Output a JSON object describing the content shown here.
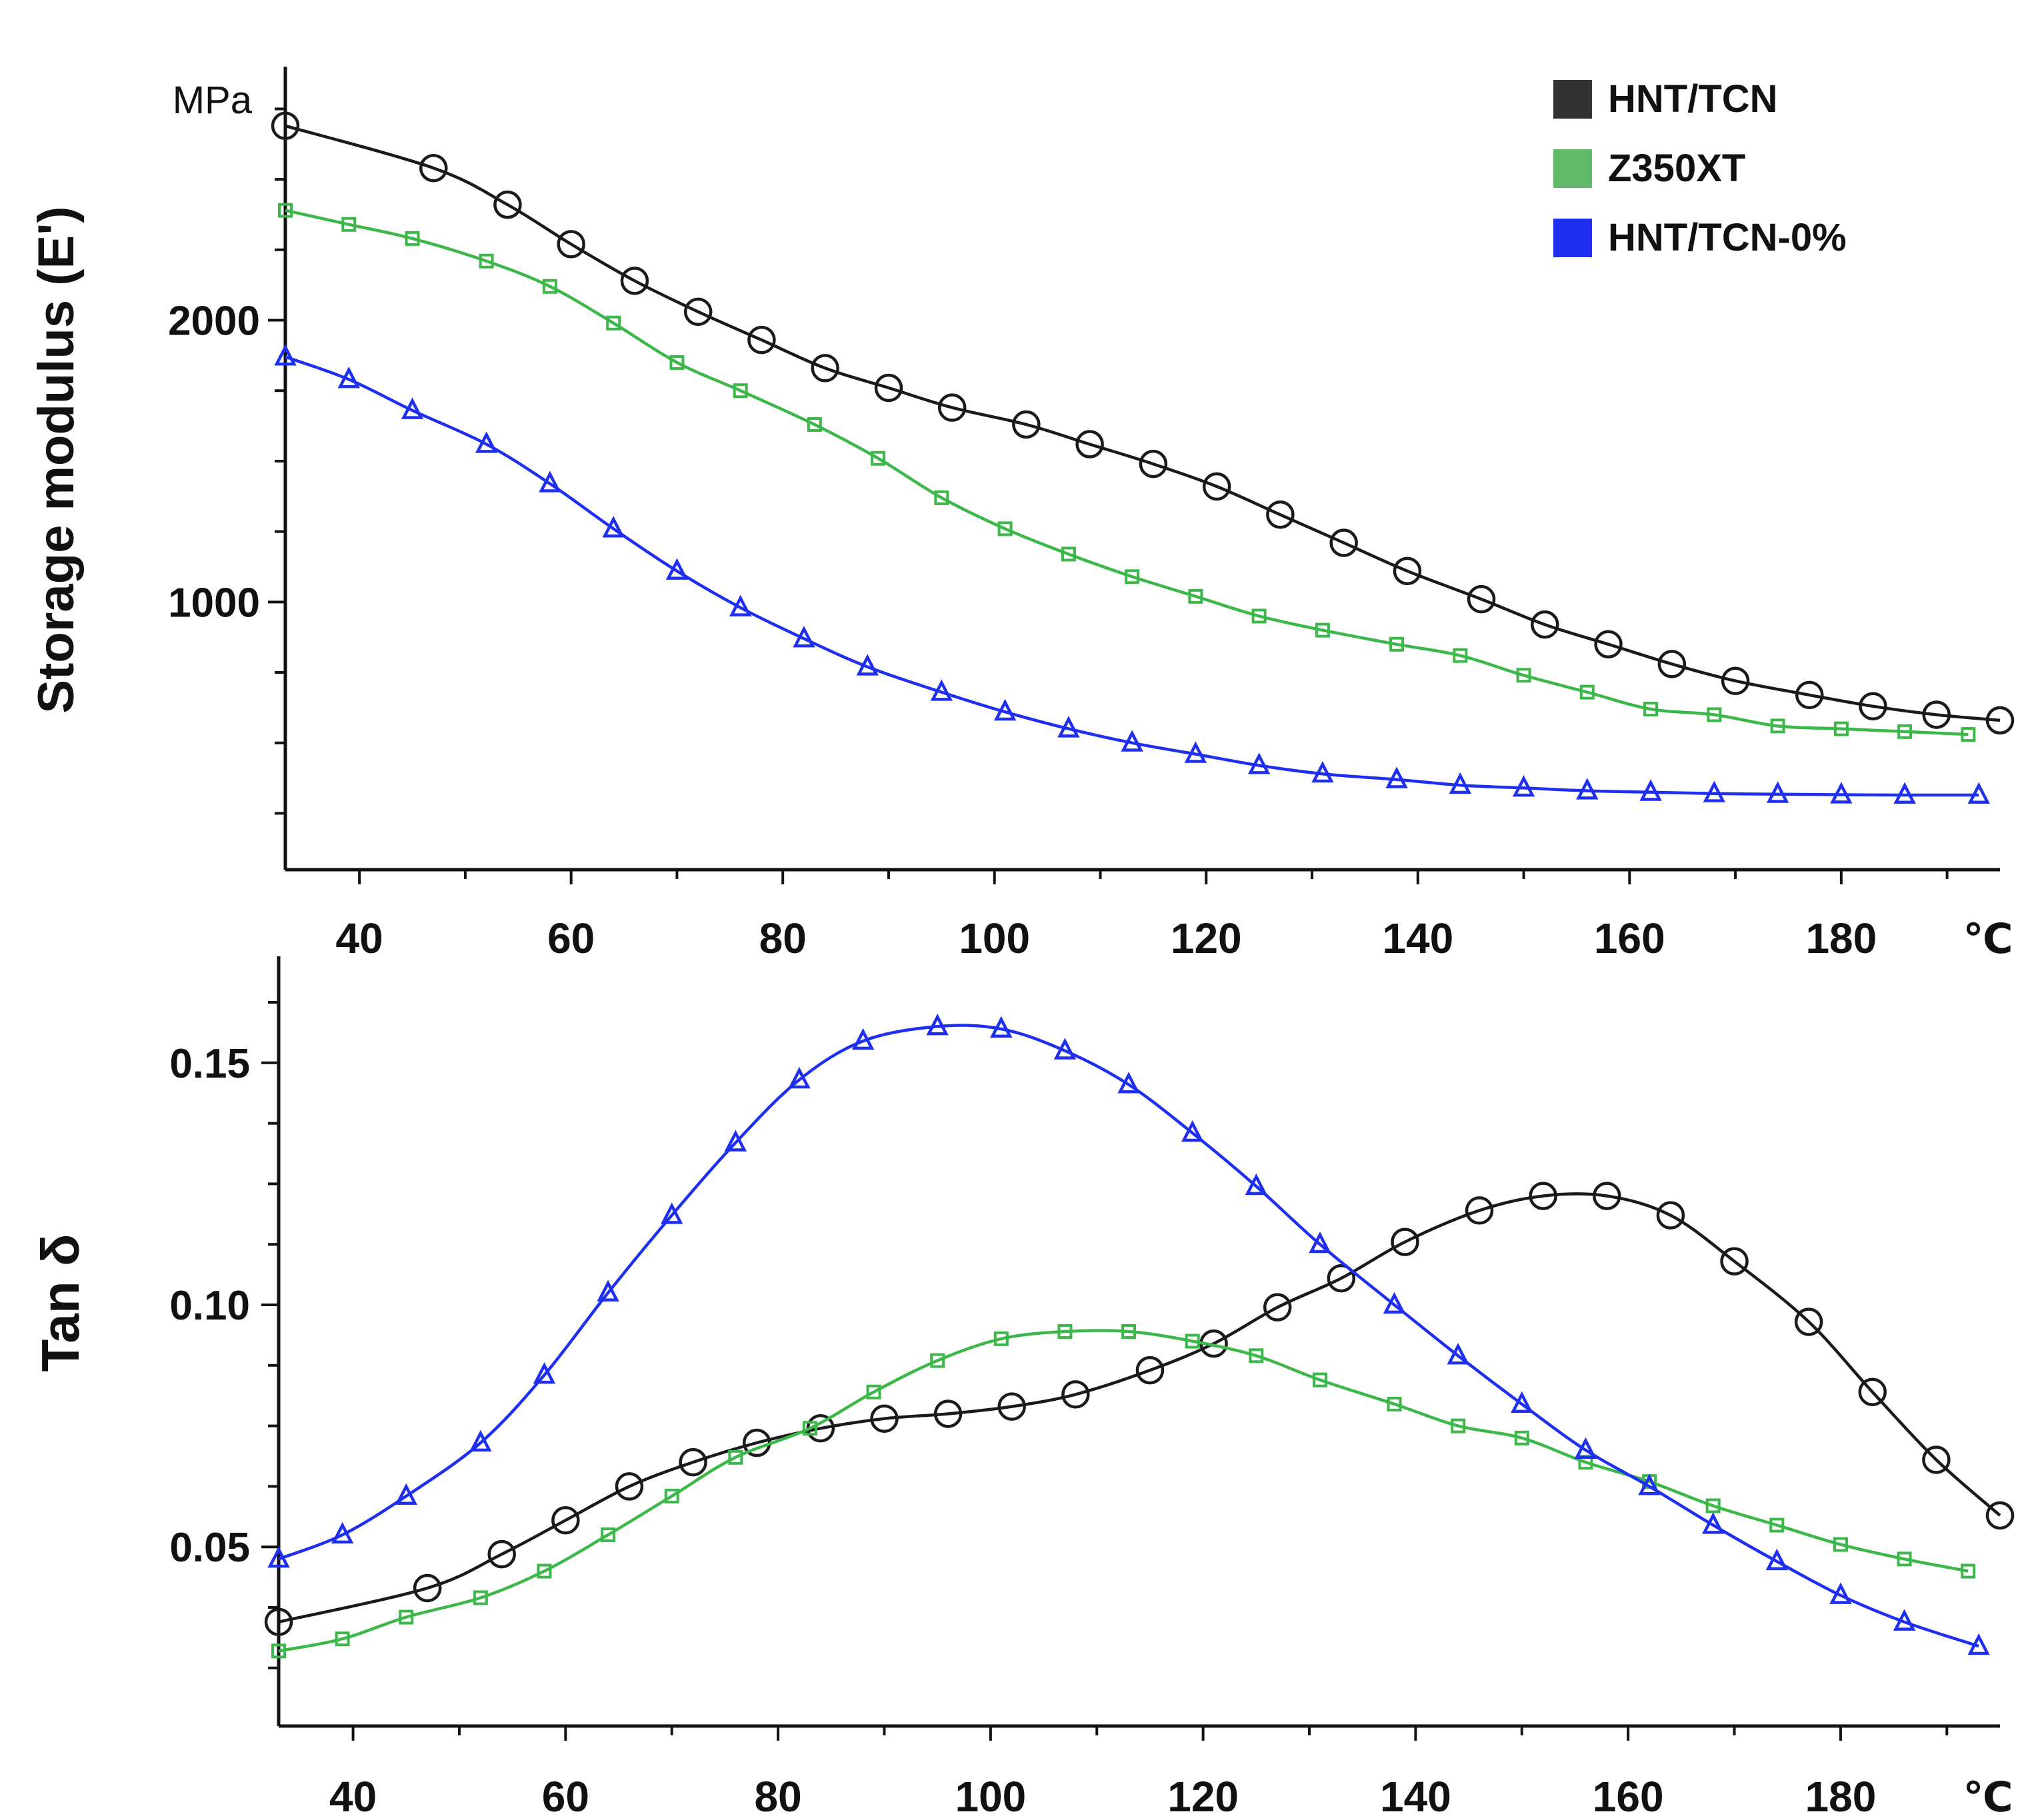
{
  "legend": {
    "entries": [
      {
        "label": "HNT/TCN",
        "color": "#333333"
      },
      {
        "label": "Z350XT",
        "color": "#5fba6a"
      },
      {
        "label": "HNT/TCN-0%",
        "color": "#1f2ff0"
      }
    ]
  },
  "chart_data": [
    {
      "type": "line",
      "title": "",
      "xlabel": "°C",
      "ylabel": "Storage modulus (E')",
      "y_unit_label": "MPa",
      "xlim": [
        33,
        195
      ],
      "ylim": [
        50,
        2900
      ],
      "x_ticks": [
        40,
        60,
        80,
        100,
        120,
        140,
        160,
        180
      ],
      "x_unit_tick": "℃",
      "y_ticks": [
        1000,
        2000
      ],
      "legend_position": "top-right",
      "series": [
        {
          "name": "HNT/TCN",
          "color": "#1a1a1a",
          "marker": "circle",
          "x": [
            33,
            47,
            54,
            60,
            66,
            72,
            78,
            84,
            90,
            96,
            103,
            109,
            115,
            121,
            127,
            133,
            139,
            146,
            152,
            158,
            164,
            170,
            177,
            183,
            189,
            195
          ],
          "y": [
            2690,
            2540,
            2410,
            2270,
            2140,
            2030,
            1930,
            1830,
            1760,
            1690,
            1630,
            1560,
            1490,
            1410,
            1310,
            1210,
            1110,
            1010,
            920,
            850,
            780,
            720,
            670,
            630,
            600,
            580
          ]
        },
        {
          "name": "Z350XT",
          "color": "#3cb84a",
          "marker": "square",
          "x": [
            33,
            39,
            45,
            52,
            58,
            64,
            70,
            76,
            83,
            89,
            95,
            101,
            107,
            113,
            119,
            125,
            131,
            138,
            144,
            150,
            156,
            162,
            168,
            174,
            180,
            186,
            192
          ],
          "y": [
            2390,
            2340,
            2290,
            2210,
            2120,
            1990,
            1850,
            1750,
            1630,
            1510,
            1370,
            1260,
            1170,
            1090,
            1020,
            950,
            900,
            850,
            810,
            740,
            680,
            620,
            600,
            560,
            550,
            540,
            530
          ]
        },
        {
          "name": "HNT/TCN-0%",
          "color": "#1f2ff0",
          "marker": "triangle",
          "x": [
            33,
            39,
            45,
            52,
            58,
            64,
            70,
            76,
            82,
            88,
            95,
            101,
            107,
            113,
            119,
            125,
            131,
            138,
            144,
            150,
            156,
            162,
            168,
            174,
            180,
            186,
            193
          ],
          "y": [
            1870,
            1790,
            1680,
            1560,
            1420,
            1260,
            1110,
            980,
            870,
            770,
            680,
            610,
            550,
            500,
            460,
            420,
            390,
            370,
            350,
            340,
            330,
            325,
            320,
            318,
            316,
            315,
            315
          ]
        }
      ]
    },
    {
      "type": "line",
      "title": "",
      "xlabel": "°C",
      "ylabel": "Tan δ",
      "xlim": [
        33,
        195
      ],
      "ylim": [
        0.013,
        0.172
      ],
      "x_ticks": [
        40,
        60,
        80,
        100,
        120,
        140,
        160,
        180
      ],
      "x_unit_tick": "℃",
      "y_ticks": [
        0.05,
        0.1,
        0.15
      ],
      "y_tick_labels": [
        "0.05",
        "0.10",
        "0.15"
      ],
      "series": [
        {
          "name": "HNT/TCN",
          "color": "#1a1a1a",
          "marker": "circle",
          "x": [
            33,
            47,
            54,
            60,
            66,
            72,
            78,
            84,
            90,
            96,
            102,
            108,
            115,
            121,
            127,
            133,
            139,
            146,
            152,
            158,
            164,
            170,
            177,
            183,
            189,
            195
          ],
          "y": [
            0.0345,
            0.0415,
            0.0485,
            0.0555,
            0.0625,
            0.0675,
            0.0715,
            0.0745,
            0.0765,
            0.0775,
            0.079,
            0.0815,
            0.0865,
            0.092,
            0.0995,
            0.1055,
            0.113,
            0.1195,
            0.1225,
            0.1225,
            0.1185,
            0.109,
            0.0965,
            0.082,
            0.068,
            0.0565
          ]
        },
        {
          "name": "Z350XT",
          "color": "#3cb84a",
          "marker": "square",
          "x": [
            33,
            39,
            45,
            52,
            58,
            64,
            70,
            76,
            83,
            89,
            95,
            101,
            107,
            113,
            119,
            125,
            131,
            138,
            144,
            150,
            156,
            162,
            168,
            174,
            180,
            186,
            192
          ],
          "y": [
            0.0285,
            0.031,
            0.0355,
            0.0395,
            0.045,
            0.0525,
            0.0605,
            0.0685,
            0.0745,
            0.082,
            0.0885,
            0.093,
            0.0945,
            0.0945,
            0.0925,
            0.0895,
            0.0845,
            0.0795,
            0.075,
            0.0725,
            0.0675,
            0.0635,
            0.0585,
            0.0545,
            0.0505,
            0.0475,
            0.045
          ]
        },
        {
          "name": "HNT/TCN-0%",
          "color": "#1f2ff0",
          "marker": "triangle",
          "x": [
            33,
            39,
            45,
            52,
            58,
            64,
            70,
            76,
            82,
            88,
            95,
            101,
            107,
            113,
            119,
            125,
            131,
            138,
            144,
            150,
            156,
            162,
            168,
            174,
            180,
            186,
            193
          ],
          "y": [
            0.0475,
            0.0525,
            0.0605,
            0.0715,
            0.0855,
            0.1025,
            0.1185,
            0.1335,
            0.1465,
            0.1545,
            0.1575,
            0.157,
            0.1525,
            0.1455,
            0.1355,
            0.1245,
            0.1125,
            0.1,
            0.0895,
            0.0795,
            0.07,
            0.0625,
            0.0545,
            0.047,
            0.04,
            0.0345,
            0.0295
          ]
        }
      ]
    }
  ]
}
